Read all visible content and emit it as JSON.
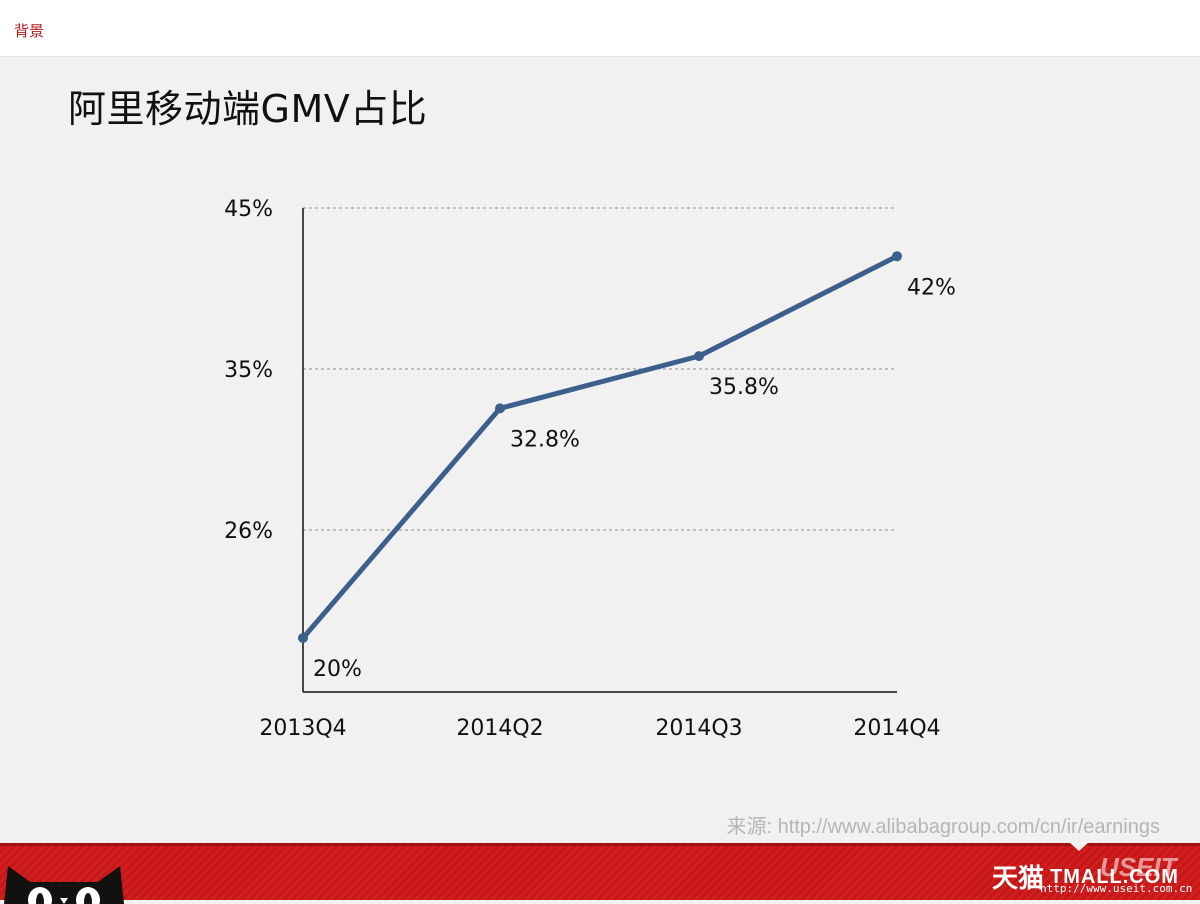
{
  "header": {
    "section_label": "背景"
  },
  "slide": {
    "title": "阿里移动端GMV占比"
  },
  "chart_data": {
    "type": "line",
    "title": "阿里移动端GMV占比",
    "categories": [
      "2013Q4",
      "2014Q2",
      "2014Q3",
      "2014Q4"
    ],
    "values": [
      20,
      32.8,
      35.8,
      42
    ],
    "value_labels": [
      "20%",
      "32.8%",
      "35.8%",
      "42%"
    ],
    "yticks": [
      26,
      35,
      45
    ],
    "ytick_labels": [
      "26%",
      "35%",
      "45%"
    ],
    "ylim": [
      17,
      45
    ],
    "grid": true,
    "line_color": "#3c5f8c",
    "xlabel": "",
    "ylabel": ""
  },
  "footer": {
    "source": "来源: http://www.alibabagroup.com/cn/ir/earnings",
    "brand": "天猫",
    "brand_latin": "TMALL.COM",
    "watermark": "USEIT",
    "watermark_url": "http://www.useit.com.cn"
  },
  "colors": {
    "accent": "#b01c1c",
    "footer_red": "#d11f1f",
    "series": "#3c5f8c"
  }
}
